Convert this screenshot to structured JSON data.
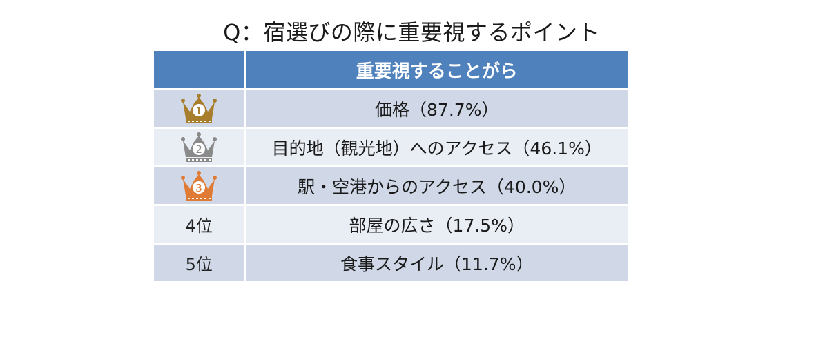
{
  "title": "Q：宿選びの際に重要視するポイント",
  "table": {
    "header": {
      "rank": "",
      "item": "重要視することがら"
    },
    "rows": [
      {
        "rank": "1",
        "crown_color": "#a87d2b",
        "item": "価格（87.7%）"
      },
      {
        "rank": "2",
        "crown_color": "#8a8a8a",
        "item": "目的地（観光地）へのアクセス（46.1%）"
      },
      {
        "rank": "3",
        "crown_color": "#e07b35",
        "item": "駅・空港からのアクセス（40.0%）"
      },
      {
        "rank": "4位",
        "item": "部屋の広さ（17.5%）"
      },
      {
        "rank": "5位",
        "item": "食事スタイル（11.7%）"
      }
    ]
  }
}
